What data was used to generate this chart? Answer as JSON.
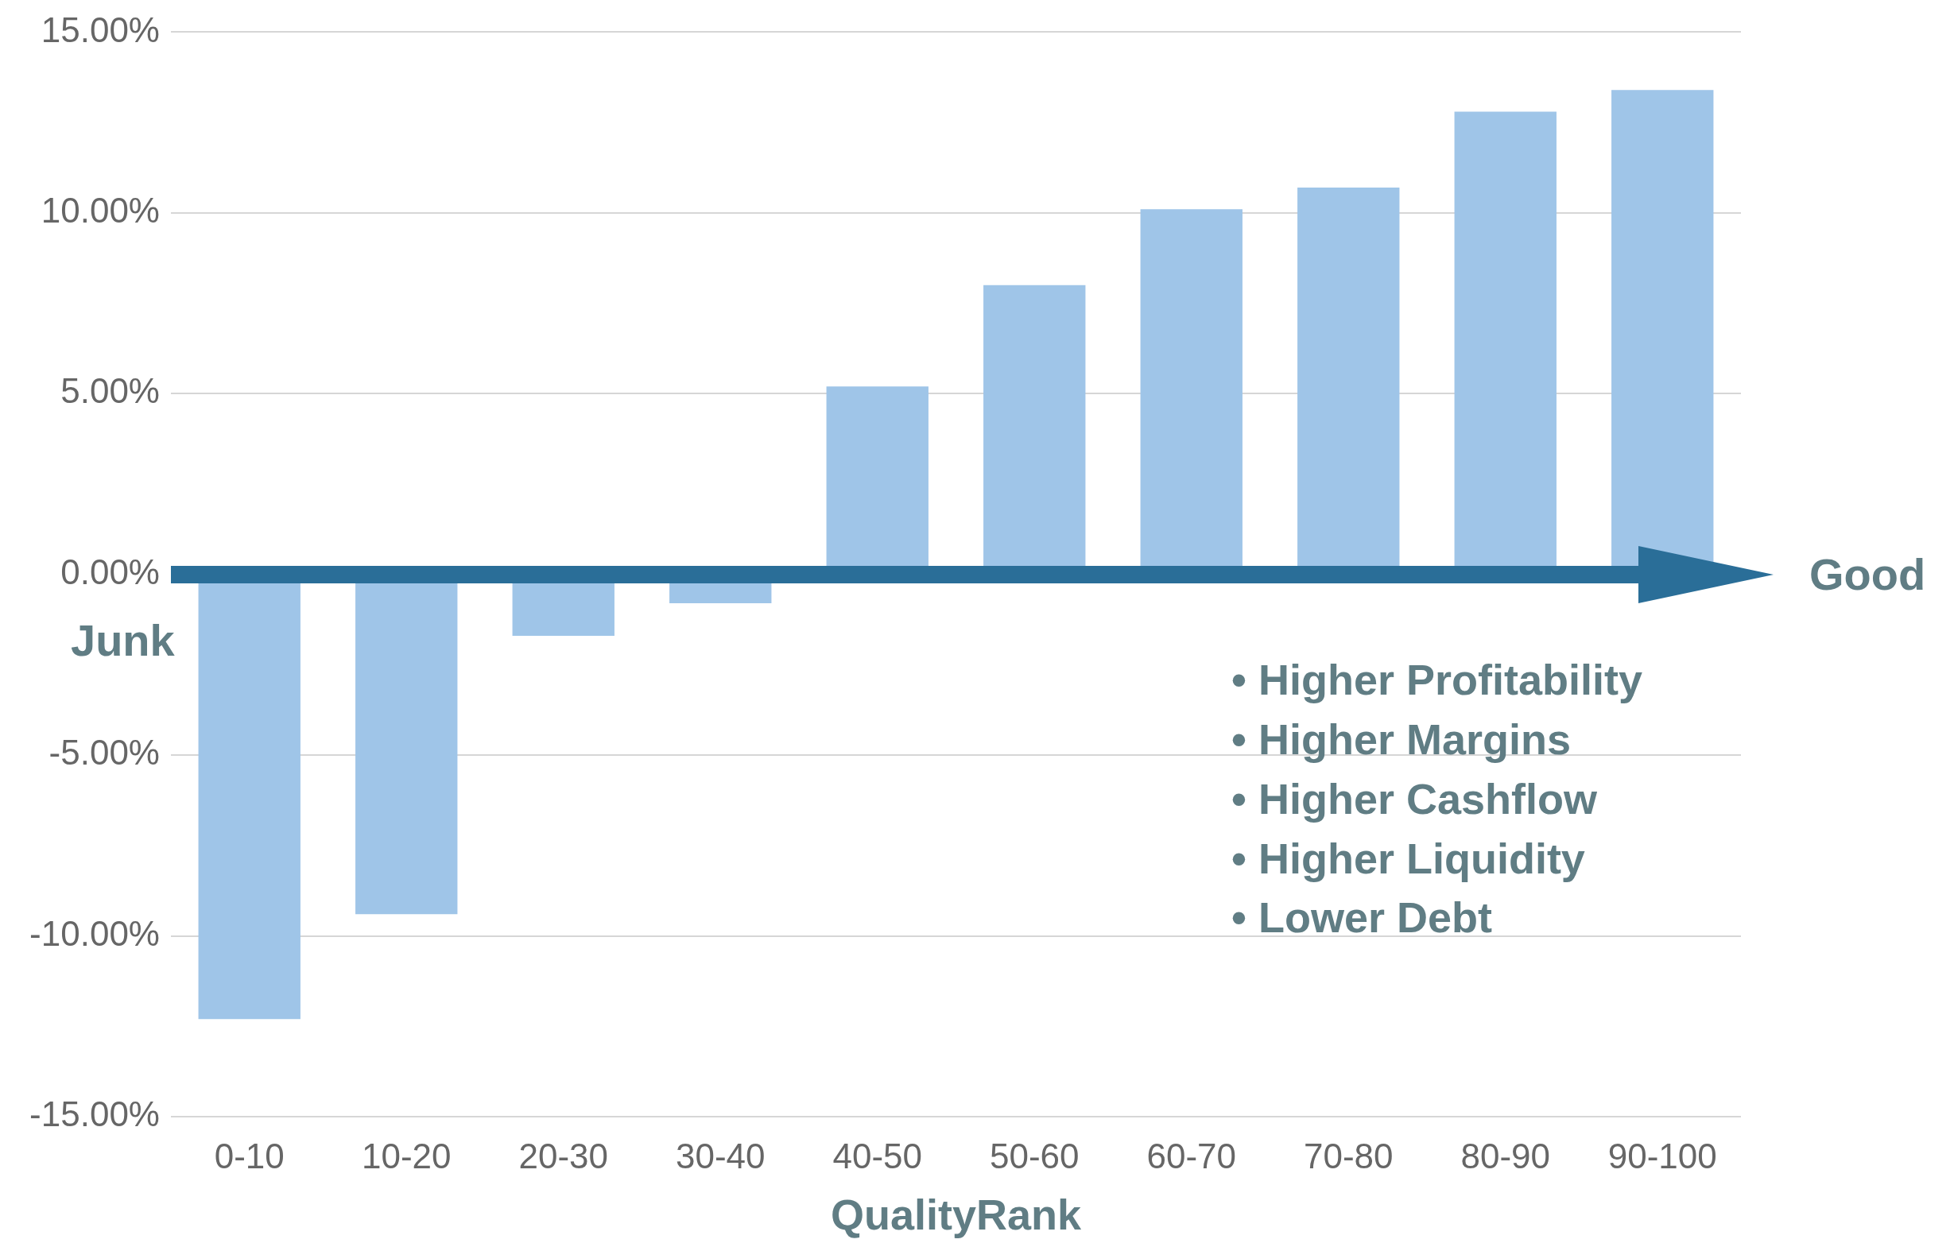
{
  "chart_data": {
    "type": "bar",
    "categories": [
      "0-10",
      "10-20",
      "20-30",
      "30-40",
      "40-50",
      "50-60",
      "60-70",
      "70-80",
      "80-90",
      "90-100"
    ],
    "values": [
      -12.3,
      -9.4,
      -1.7,
      -0.8,
      5.2,
      8.0,
      10.1,
      10.7,
      12.8,
      13.4
    ],
    "color": "#9fc5e8",
    "xlabel": "QualityRank",
    "ylim": [
      -15,
      15
    ],
    "yticks": [
      {
        "value": -15,
        "label": "-15.00%"
      },
      {
        "value": -10,
        "label": "-10.00%"
      },
      {
        "value": -5,
        "label": "-5.00%"
      },
      {
        "value": 0,
        "label": "0.00%"
      },
      {
        "value": 5,
        "label": "5.00%"
      },
      {
        "value": 10,
        "label": "10.00%"
      },
      {
        "value": 15,
        "label": "15.00%"
      }
    ],
    "grid": "y",
    "legend": false,
    "annotations": [
      "Junk",
      "Good",
      "• Higher Profitability",
      "• Higher Margins",
      "• Higher Cashflow",
      "• Higher Liquidity",
      "• Lower Debt"
    ]
  }
}
